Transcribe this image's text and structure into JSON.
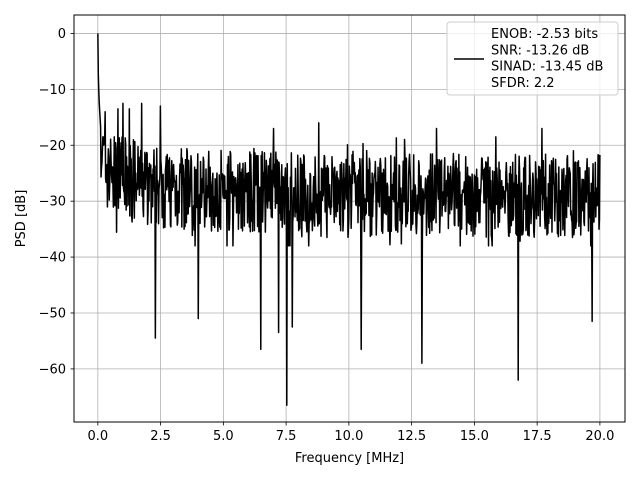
{
  "chart_data": {
    "type": "line",
    "title": "",
    "xlabel": "Frequency [MHz]",
    "ylabel": "PSD [dB]",
    "xlim": [
      -0.95,
      21.0
    ],
    "ylim": [
      -69.5,
      3.3
    ],
    "xticks": [
      0.0,
      2.5,
      5.0,
      7.5,
      10.0,
      12.5,
      15.0,
      17.5,
      20.0
    ],
    "xtick_labels": [
      "0.0",
      "2.5",
      "5.0",
      "7.5",
      "10.0",
      "12.5",
      "15.0",
      "17.5",
      "20.0"
    ],
    "yticks": [
      0,
      -10,
      -20,
      -30,
      -40,
      -50,
      -60
    ],
    "ytick_labels": [
      "0",
      "−10",
      "−20",
      "−30",
      "−40",
      "−50",
      "−60"
    ],
    "grid": true,
    "legend_placement": "upper right",
    "line_color": "#000000",
    "series": [
      {
        "name": "ENOB: -2.53 bits\nSNR: -13.26 dB\nSINAD: -13.45 dB\nSFDR: 2.2",
        "description": "Noisy spectrum: peak 0 dB at 0 MHz, noise band roughly -37 to -20 dB across 0–20 MHz",
        "x": [
          0.0,
          0.02,
          0.05,
          0.1,
          0.15,
          0.2,
          0.3,
          0.5,
          1.0,
          2.0,
          3.0,
          4.0,
          5.0,
          6.0,
          7.0,
          8.0,
          9.0,
          10.0,
          11.0,
          12.0,
          13.0,
          14.0,
          15.0,
          16.0,
          17.0,
          18.0,
          19.0,
          20.0
        ],
        "y": [
          0.0,
          -8.0,
          -12.0,
          -16.0,
          -20.0,
          -22.0,
          -24.0,
          -25.0,
          -26.0,
          -27.0,
          -27.5,
          -28.0,
          -28.0,
          -28.5,
          -28.5,
          -29.0,
          -29.0,
          -29.0,
          -29.0,
          -29.0,
          -29.0,
          -29.0,
          -29.0,
          -29.0,
          -29.0,
          -29.0,
          -29.0,
          -29.0
        ]
      }
    ],
    "dips": [
      {
        "x": 2.3,
        "y": -54.5
      },
      {
        "x": 4.0,
        "y": -51.0
      },
      {
        "x": 6.5,
        "y": -56.5
      },
      {
        "x": 7.2,
        "y": -53.5
      },
      {
        "x": 7.52,
        "y": -66.5
      },
      {
        "x": 7.75,
        "y": -52.5
      },
      {
        "x": 10.5,
        "y": -56.5
      },
      {
        "x": 12.9,
        "y": -59.0
      },
      {
        "x": 16.75,
        "y": -62.0
      },
      {
        "x": 19.7,
        "y": -51.5
      }
    ],
    "upper_peaks": [
      {
        "x": 0.3,
        "y": -14.0
      },
      {
        "x": 0.8,
        "y": -13.5
      },
      {
        "x": 1.0,
        "y": -12.5
      },
      {
        "x": 1.25,
        "y": -13.5
      },
      {
        "x": 1.75,
        "y": -12.5
      },
      {
        "x": 2.5,
        "y": -13.0
      },
      {
        "x": 4.0,
        "y": -16.0
      },
      {
        "x": 7.0,
        "y": -17.0
      },
      {
        "x": 8.8,
        "y": -16.0
      },
      {
        "x": 13.5,
        "y": -17.0
      },
      {
        "x": 17.7,
        "y": -17.0
      }
    ]
  }
}
